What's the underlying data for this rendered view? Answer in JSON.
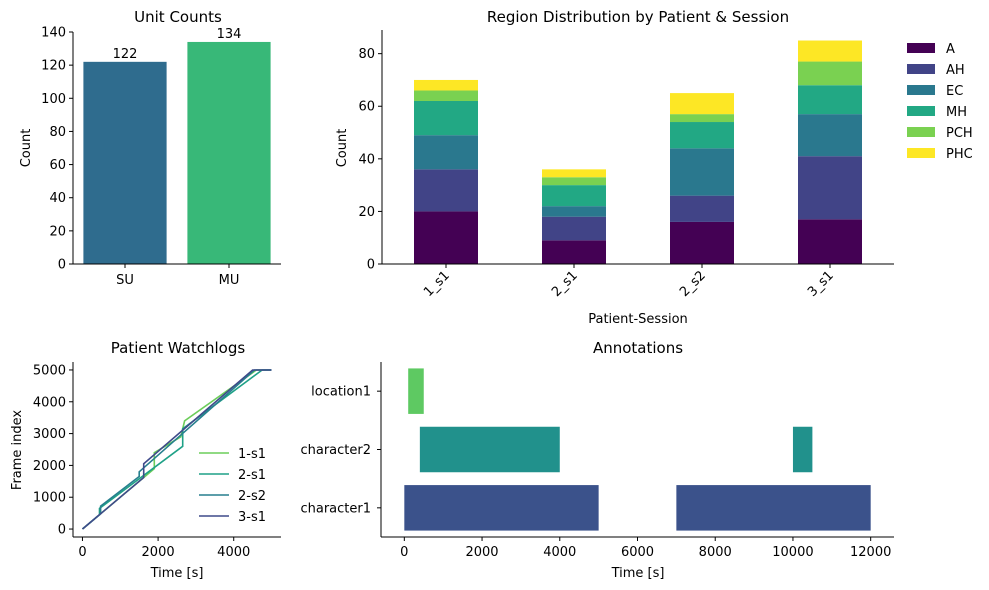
{
  "chart_data": [
    {
      "type": "bar",
      "id": "unit-counts",
      "title": "Unit Counts",
      "xlabel": "",
      "ylabel": "Count",
      "categories": [
        "SU",
        "MU"
      ],
      "values": [
        122,
        134
      ],
      "value_labels": [
        "122",
        "134"
      ],
      "colors": [
        "#2f6c8e",
        "#38b878"
      ],
      "ylim": [
        0,
        140
      ],
      "yticks": [
        0,
        20,
        40,
        60,
        80,
        100,
        120,
        140
      ],
      "grid": false
    },
    {
      "type": "bar",
      "stacked": true,
      "id": "region-distribution",
      "title": "Region Distribution by Patient & Session",
      "xlabel": "Patient-Session",
      "ylabel": "Count",
      "categories": [
        "1_s1",
        "2_s1",
        "2_s2",
        "3_s1"
      ],
      "series": [
        {
          "name": "A",
          "color": "#440154",
          "values": [
            20,
            9,
            16,
            17
          ]
        },
        {
          "name": "AH",
          "color": "#414487",
          "values": [
            16,
            9,
            10,
            24
          ]
        },
        {
          "name": "EC",
          "color": "#2a788e",
          "values": [
            13,
            4,
            18,
            16
          ]
        },
        {
          "name": "MH",
          "color": "#22a884",
          "values": [
            13,
            8,
            10,
            11
          ]
        },
        {
          "name": "PCH",
          "color": "#7ad151",
          "values": [
            4,
            3,
            3,
            9
          ]
        },
        {
          "name": "PHC",
          "color": "#fde725",
          "values": [
            4,
            3,
            8,
            8
          ]
        }
      ],
      "ylim": [
        0,
        89
      ],
      "yticks": [
        0,
        20,
        40,
        60,
        80
      ],
      "legend": "outside-right",
      "grid": false
    },
    {
      "type": "line",
      "id": "patient-watchlogs",
      "title": "Patient Watchlogs",
      "xlabel": "Time [s]",
      "ylabel": "Frame index",
      "xlim": [
        -250,
        5250
      ],
      "ylim": [
        -250,
        5250
      ],
      "xticks": [
        0,
        2000,
        4000
      ],
      "yticks": [
        0,
        1000,
        2000,
        3000,
        4000,
        5000
      ],
      "legend": "lower-right",
      "series": [
        {
          "name": "1-s1",
          "color": "#6ccd5a",
          "x": [
            0,
            1900,
            1900,
            2600,
            2700,
            4600,
            5000
          ],
          "y": [
            0,
            1900,
            2400,
            2900,
            3400,
            5000,
            5000
          ]
        },
        {
          "name": "2-s1",
          "color": "#1fa187",
          "x": [
            0,
            450,
            450,
            2650,
            2650,
            4750,
            5000
          ],
          "y": [
            0,
            450,
            650,
            2600,
            3150,
            5000,
            5000
          ]
        },
        {
          "name": "2-s2",
          "color": "#277f8e",
          "x": [
            0,
            480,
            480,
            1500,
            1500,
            4550,
            5000
          ],
          "y": [
            0,
            480,
            720,
            1650,
            1800,
            5000,
            5000
          ]
        },
        {
          "name": "3-s1",
          "color": "#3f4a8a",
          "x": [
            0,
            1620,
            1620,
            4500,
            5000
          ],
          "y": [
            0,
            1620,
            2050,
            5000,
            5000
          ]
        }
      ]
    },
    {
      "type": "bar",
      "orientation": "horizontal",
      "id": "annotations",
      "title": "Annotations",
      "xlabel": "Time [s]",
      "ylabel": "",
      "categories": [
        "character1",
        "character2",
        "location1"
      ],
      "intervals": [
        {
          "category": "character1",
          "start": 0,
          "end": 5000,
          "color": "#3b528b"
        },
        {
          "category": "character1",
          "start": 7000,
          "end": 12000,
          "color": "#3b528b"
        },
        {
          "category": "character2",
          "start": 400,
          "end": 4000,
          "color": "#21918c"
        },
        {
          "category": "character2",
          "start": 10000,
          "end": 10500,
          "color": "#21918c"
        },
        {
          "category": "location1",
          "start": 100,
          "end": 500,
          "color": "#5ec962"
        }
      ],
      "xlim": [
        -600,
        12600
      ],
      "xticks": [
        0,
        2000,
        4000,
        6000,
        8000,
        10000,
        12000
      ],
      "grid": false
    }
  ]
}
